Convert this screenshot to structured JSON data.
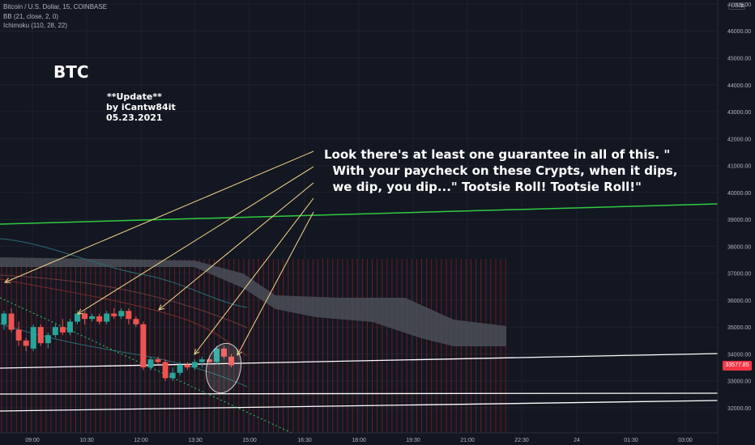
{
  "legend": {
    "symbol": "Bitcoin / U.S. Dollar, 15, COINBASE",
    "bb": "BB (21, close, 2, 0)",
    "ichimoku": "Ichimoku (110, 28, 22)"
  },
  "currency": "USD",
  "menu_icon": "menu-icon",
  "last_price": "33577.85",
  "annotations": {
    "btc": "BTC",
    "update": "**Update**",
    "author": "by iCantw84it",
    "date": "05.23.2021",
    "quote": "Look there's at least one guarantee in all of this. \"\n  With your paycheck on these Crypts, when it dips,\n  we dip, you dip...\" Tootsie Roll! Tootsie Roll!\""
  },
  "colors": {
    "background": "#131722",
    "up": "#26a69a",
    "down": "#ef5350",
    "green_line": "#2ecc40",
    "annotation_arrow": "#f5d58a",
    "cloud": "#4a4d57"
  },
  "chart_data": {
    "type": "candlestick",
    "title": "Bitcoin / U.S. Dollar, 15, COINBASE",
    "ylim": [
      31500,
      47200
    ],
    "y_ticks": [
      32000,
      33000,
      34000,
      35000,
      36000,
      37000,
      38000,
      39000,
      40000,
      41000,
      42000,
      43000,
      44000,
      45000,
      46000,
      47000
    ],
    "x_ticks": [
      "09:00",
      "10:30",
      "12:00",
      "13:30",
      "15:00",
      "16:30",
      "18:00",
      "19:30",
      "21:00",
      "22:30",
      "24",
      "01:30",
      "03:00"
    ],
    "grid": true,
    "candles": [
      {
        "o": 35100,
        "h": 35600,
        "l": 34900,
        "c": 35500
      },
      {
        "o": 35500,
        "h": 35700,
        "l": 34800,
        "c": 34900
      },
      {
        "o": 34900,
        "h": 35200,
        "l": 34300,
        "c": 34500
      },
      {
        "o": 34500,
        "h": 34600,
        "l": 34100,
        "c": 34300
      },
      {
        "o": 34200,
        "h": 35100,
        "l": 34100,
        "c": 35000
      },
      {
        "o": 35000,
        "h": 35100,
        "l": 34300,
        "c": 34400
      },
      {
        "o": 34400,
        "h": 34800,
        "l": 34200,
        "c": 34700
      },
      {
        "o": 34700,
        "h": 35100,
        "l": 34600,
        "c": 35000
      },
      {
        "o": 35000,
        "h": 35300,
        "l": 34700,
        "c": 34800
      },
      {
        "o": 34800,
        "h": 35300,
        "l": 34700,
        "c": 35200
      },
      {
        "o": 35200,
        "h": 35600,
        "l": 35100,
        "c": 35500
      },
      {
        "o": 35500,
        "h": 35600,
        "l": 35100,
        "c": 35300
      },
      {
        "o": 35300,
        "h": 35500,
        "l": 35200,
        "c": 35400
      },
      {
        "o": 35400,
        "h": 35500,
        "l": 35100,
        "c": 35200
      },
      {
        "o": 35200,
        "h": 35600,
        "l": 35100,
        "c": 35500
      },
      {
        "o": 35500,
        "h": 35700,
        "l": 35300,
        "c": 35400
      },
      {
        "o": 35400,
        "h": 35700,
        "l": 35300,
        "c": 35600
      },
      {
        "o": 35600,
        "h": 35700,
        "l": 35100,
        "c": 35300
      },
      {
        "o": 35300,
        "h": 35400,
        "l": 35000,
        "c": 35100
      },
      {
        "o": 35100,
        "h": 35200,
        "l": 33400,
        "c": 33500
      },
      {
        "o": 33500,
        "h": 33900,
        "l": 33400,
        "c": 33800
      },
      {
        "o": 33800,
        "h": 33900,
        "l": 33600,
        "c": 33700
      },
      {
        "o": 33700,
        "h": 33800,
        "l": 33000,
        "c": 33100
      },
      {
        "o": 33100,
        "h": 33500,
        "l": 33000,
        "c": 33300
      },
      {
        "o": 33300,
        "h": 33700,
        "l": 33200,
        "c": 33600
      },
      {
        "o": 33600,
        "h": 33700,
        "l": 33400,
        "c": 33500
      },
      {
        "o": 33500,
        "h": 33800,
        "l": 33400,
        "c": 33700
      },
      {
        "o": 33700,
        "h": 33900,
        "l": 33500,
        "c": 33800
      },
      {
        "o": 33800,
        "h": 33900,
        "l": 33600,
        "c": 33700
      },
      {
        "o": 33700,
        "h": 34300,
        "l": 33600,
        "c": 34200
      },
      {
        "o": 34200,
        "h": 34300,
        "l": 33800,
        "c": 33900
      },
      {
        "o": 33900,
        "h": 34000,
        "l": 33500,
        "c": 33578
      }
    ]
  }
}
